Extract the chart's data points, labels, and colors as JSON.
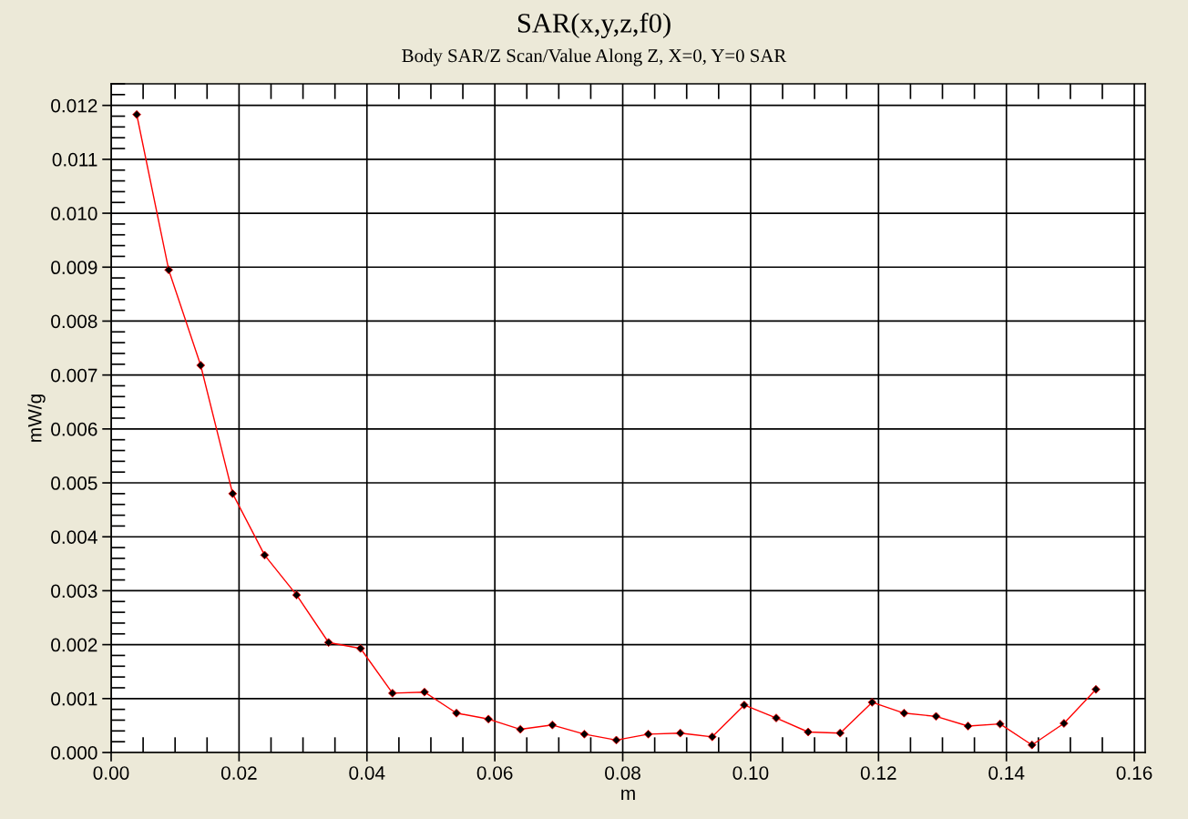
{
  "chart_data": {
    "type": "line",
    "title": "SAR(x,y,z,f0)",
    "subtitle": "Body SAR/Z Scan/Value Along Z, X=0, Y=0 SAR",
    "xlabel": "m",
    "ylabel": "mW/g",
    "x": [
      0.004,
      0.009,
      0.014,
      0.019,
      0.024,
      0.029,
      0.034,
      0.039,
      0.044,
      0.049,
      0.054,
      0.059,
      0.064,
      0.069,
      0.074,
      0.079,
      0.084,
      0.089,
      0.094,
      0.099,
      0.104,
      0.109,
      0.114,
      0.119,
      0.124,
      0.129,
      0.134,
      0.139,
      0.144,
      0.149,
      0.154
    ],
    "series": [
      {
        "color": "#ff0000",
        "values": [
          0.01183,
          0.00895,
          0.00718,
          0.0048,
          0.00366,
          0.00292,
          0.00204,
          0.00193,
          0.0011,
          0.00112,
          0.00073,
          0.00062,
          0.00043,
          0.00051,
          0.00034,
          0.00023,
          0.00034,
          0.00036,
          0.00029,
          0.00088,
          0.00064,
          0.00038,
          0.00036,
          0.00093,
          0.00073,
          0.00067,
          0.00049,
          0.00053,
          0.00014,
          0.00054,
          0.00117
        ]
      }
    ],
    "xlim": [
      0.0,
      0.1617
    ],
    "ylim": [
      0.0,
      0.0124
    ],
    "xticks": [
      {
        "value": 0.0,
        "label": "0.00"
      },
      {
        "value": 0.02,
        "label": "0.02"
      },
      {
        "value": 0.04,
        "label": "0.04"
      },
      {
        "value": 0.06,
        "label": "0.06"
      },
      {
        "value": 0.08,
        "label": "0.08"
      },
      {
        "value": 0.1,
        "label": "0.10"
      },
      {
        "value": 0.12,
        "label": "0.12"
      },
      {
        "value": 0.14,
        "label": "0.14"
      },
      {
        "value": 0.16,
        "label": "0.16"
      }
    ],
    "yticks": [
      {
        "value": 0.0,
        "label": "0.000"
      },
      {
        "value": 0.001,
        "label": "0.001"
      },
      {
        "value": 0.002,
        "label": "0.002"
      },
      {
        "value": 0.003,
        "label": "0.003"
      },
      {
        "value": 0.004,
        "label": "0.004"
      },
      {
        "value": 0.005,
        "label": "0.005"
      },
      {
        "value": 0.006,
        "label": "0.006"
      },
      {
        "value": 0.007,
        "label": "0.007"
      },
      {
        "value": 0.008,
        "label": "0.008"
      },
      {
        "value": 0.009,
        "label": "0.009"
      },
      {
        "value": 0.01,
        "label": "0.010"
      },
      {
        "value": 0.011,
        "label": "0.011"
      },
      {
        "value": 0.012,
        "label": "0.012"
      }
    ],
    "grid": true,
    "marker": "diamond",
    "line_style": "solid",
    "legend": false
  }
}
